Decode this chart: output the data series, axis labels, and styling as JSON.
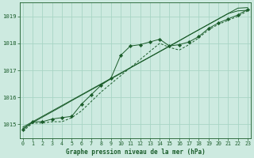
{
  "x": [
    0,
    1,
    2,
    3,
    4,
    5,
    6,
    7,
    8,
    9,
    10,
    11,
    12,
    13,
    14,
    15,
    16,
    17,
    18,
    19,
    20,
    21,
    22,
    23
  ],
  "line_marker": [
    1014.8,
    1015.1,
    1015.1,
    1015.2,
    1015.25,
    1015.3,
    1015.75,
    1016.1,
    1016.45,
    1016.7,
    1017.55,
    1017.9,
    1017.95,
    1018.05,
    1018.15,
    1017.9,
    1017.95,
    1018.05,
    1018.25,
    1018.55,
    1018.75,
    1018.9,
    1019.05,
    1019.25
  ],
  "line_straight1": [
    1014.85,
    1015.07,
    1015.27,
    1015.47,
    1015.67,
    1015.88,
    1016.08,
    1016.28,
    1016.48,
    1016.68,
    1016.88,
    1017.09,
    1017.29,
    1017.49,
    1017.69,
    1017.89,
    1018.09,
    1018.3,
    1018.5,
    1018.7,
    1018.9,
    1019.1,
    1019.3,
    1019.32
  ],
  "line_straight2": [
    1014.9,
    1015.1,
    1015.3,
    1015.5,
    1015.7,
    1015.9,
    1016.1,
    1016.3,
    1016.5,
    1016.7,
    1016.9,
    1017.1,
    1017.3,
    1017.5,
    1017.7,
    1017.9,
    1018.1,
    1018.3,
    1018.5,
    1018.7,
    1018.9,
    1019.1,
    1019.2,
    1019.22
  ],
  "line_dotted": [
    1014.75,
    1015.05,
    1015.05,
    1015.1,
    1015.1,
    1015.25,
    1015.5,
    1015.85,
    1016.2,
    1016.5,
    1016.8,
    1017.1,
    1017.4,
    1017.7,
    1018.0,
    1017.85,
    1017.75,
    1017.95,
    1018.2,
    1018.5,
    1018.7,
    1018.85,
    1019.0,
    1019.2
  ],
  "bg_color": "#cdeae0",
  "grid_color": "#a8d5c5",
  "line_color": "#1a5c2a",
  "title": "Graphe pression niveau de la mer (hPa)",
  "ylim": [
    1014.5,
    1019.5
  ],
  "yticks": [
    1015,
    1016,
    1017,
    1018,
    1019
  ],
  "xlim": [
    -0.3,
    23.3
  ],
  "xticks": [
    0,
    1,
    2,
    3,
    4,
    5,
    6,
    7,
    8,
    9,
    10,
    11,
    12,
    13,
    14,
    15,
    16,
    17,
    18,
    19,
    20,
    21,
    22,
    23
  ]
}
